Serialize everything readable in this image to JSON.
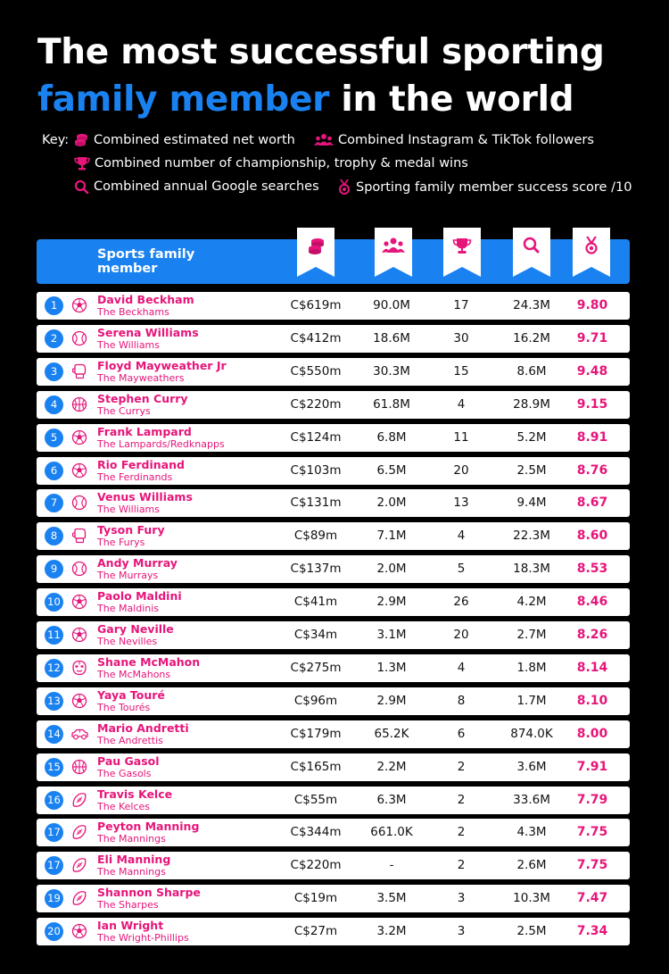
{
  "title": {
    "line1": "The most successful sporting",
    "accent": "family member",
    "rest": " in the world"
  },
  "key": {
    "label": "Key:",
    "items": [
      {
        "icon": "coins-icon",
        "text": "Combined estimated net worth"
      },
      {
        "icon": "people-icon",
        "text": "Combined Instagram & TikTok followers"
      },
      {
        "icon": "trophy-icon",
        "text": "Combined number of championship, trophy & medal wins"
      },
      {
        "icon": "search-icon",
        "text": "Combined annual Google searches"
      },
      {
        "icon": "medal-icon",
        "text": "Sporting family member success score /10"
      }
    ]
  },
  "colors": {
    "accent_blue": "#1a82f0",
    "accent_pink": "#e6157a",
    "background": "#000000"
  },
  "chart_data": {
    "type": "table",
    "header": {
      "title": "Sports family member",
      "columns": [
        "coins-icon",
        "people-icon",
        "trophy-icon",
        "search-icon",
        "medal-icon"
      ]
    },
    "rows": [
      {
        "rank": "1",
        "sport": "soccer-ball-icon",
        "name": "David Beckham",
        "family": "The Beckhams",
        "net_worth": "C$619m",
        "followers": "90.0M",
        "wins": "17",
        "searches": "24.3M",
        "score": "9.80"
      },
      {
        "rank": "2",
        "sport": "tennis-ball-icon",
        "name": "Serena Williams",
        "family": "The Williams",
        "net_worth": "C$412m",
        "followers": "18.6M",
        "wins": "30",
        "searches": "16.2M",
        "score": "9.71"
      },
      {
        "rank": "3",
        "sport": "boxing-glove-icon",
        "name": "Floyd Mayweather Jr",
        "family": "The Mayweathers",
        "net_worth": "C$550m",
        "followers": "30.3M",
        "wins": "15",
        "searches": "8.6M",
        "score": "9.48"
      },
      {
        "rank": "4",
        "sport": "basketball-icon",
        "name": "Stephen Curry",
        "family": "The Currys",
        "net_worth": "C$220m",
        "followers": "61.8M",
        "wins": "4",
        "searches": "28.9M",
        "score": "9.15"
      },
      {
        "rank": "5",
        "sport": "soccer-ball-icon",
        "name": "Frank Lampard",
        "family": "The Lampards/Redknapps",
        "net_worth": "C$124m",
        "followers": "6.8M",
        "wins": "11",
        "searches": "5.2M",
        "score": "8.91"
      },
      {
        "rank": "6",
        "sport": "soccer-ball-icon",
        "name": "Rio Ferdinand",
        "family": "The Ferdinands",
        "net_worth": "C$103m",
        "followers": "6.5M",
        "wins": "20",
        "searches": "2.5M",
        "score": "8.76"
      },
      {
        "rank": "7",
        "sport": "tennis-ball-icon",
        "name": "Venus Williams",
        "family": "The Williams",
        "net_worth": "C$131m",
        "followers": "2.0M",
        "wins": "13",
        "searches": "9.4M",
        "score": "8.67"
      },
      {
        "rank": "8",
        "sport": "boxing-glove-icon",
        "name": "Tyson Fury",
        "family": "The Furys",
        "net_worth": "C$89m",
        "followers": "7.1M",
        "wins": "4",
        "searches": "22.3M",
        "score": "8.60"
      },
      {
        "rank": "9",
        "sport": "tennis-ball-icon",
        "name": "Andy Murray",
        "family": "The Murrays",
        "net_worth": "C$137m",
        "followers": "2.0M",
        "wins": "5",
        "searches": "18.3M",
        "score": "8.53"
      },
      {
        "rank": "10",
        "sport": "soccer-ball-icon",
        "name": "Paolo Maldini",
        "family": "The Maldinis",
        "net_worth": "C$41m",
        "followers": "2.9M",
        "wins": "26",
        "searches": "4.2M",
        "score": "8.46"
      },
      {
        "rank": "11",
        "sport": "soccer-ball-icon",
        "name": "Gary Neville",
        "family": "The Nevilles",
        "net_worth": "C$34m",
        "followers": "3.1M",
        "wins": "20",
        "searches": "2.7M",
        "score": "8.26"
      },
      {
        "rank": "12",
        "sport": "wrestling-mask-icon",
        "name": "Shane McMahon",
        "family": "The McMahons",
        "net_worth": "C$275m",
        "followers": "1.3M",
        "wins": "4",
        "searches": "1.8M",
        "score": "8.14"
      },
      {
        "rank": "13",
        "sport": "soccer-ball-icon",
        "name": "Yaya Touré",
        "family": "The Tourés",
        "net_worth": "C$96m",
        "followers": "2.9M",
        "wins": "8",
        "searches": "1.7M",
        "score": "8.10"
      },
      {
        "rank": "14",
        "sport": "race-car-icon",
        "name": "Mario Andretti",
        "family": "The Andrettis",
        "net_worth": "C$179m",
        "followers": "65.2K",
        "wins": "6",
        "searches": "874.0K",
        "score": "8.00"
      },
      {
        "rank": "15",
        "sport": "basketball-icon",
        "name": "Pau Gasol",
        "family": "The Gasols",
        "net_worth": "C$165m",
        "followers": "2.2M",
        "wins": "2",
        "searches": "3.6M",
        "score": "7.91"
      },
      {
        "rank": "16",
        "sport": "american-football-icon",
        "name": "Travis Kelce",
        "family": "The Kelces",
        "net_worth": "C$55m",
        "followers": "6.3M",
        "wins": "2",
        "searches": "33.6M",
        "score": "7.79"
      },
      {
        "rank": "17",
        "sport": "american-football-icon",
        "name": "Peyton Manning",
        "family": "The Mannings",
        "net_worth": "C$344m",
        "followers": "661.0K",
        "wins": "2",
        "searches": "4.3M",
        "score": "7.75"
      },
      {
        "rank": "17",
        "sport": "american-football-icon",
        "name": "Eli Manning",
        "family": "The Mannings",
        "net_worth": "C$220m",
        "followers": "-",
        "wins": "2",
        "searches": "2.6M",
        "score": "7.75"
      },
      {
        "rank": "19",
        "sport": "american-football-icon",
        "name": "Shannon Sharpe",
        "family": "The Sharpes",
        "net_worth": "C$19m",
        "followers": "3.5M",
        "wins": "3",
        "searches": "10.3M",
        "score": "7.47"
      },
      {
        "rank": "20",
        "sport": "soccer-ball-icon",
        "name": "Ian Wright",
        "family": "The Wright-Phillips",
        "net_worth": "C$27m",
        "followers": "3.2M",
        "wins": "3",
        "searches": "2.5M",
        "score": "7.34"
      }
    ]
  }
}
